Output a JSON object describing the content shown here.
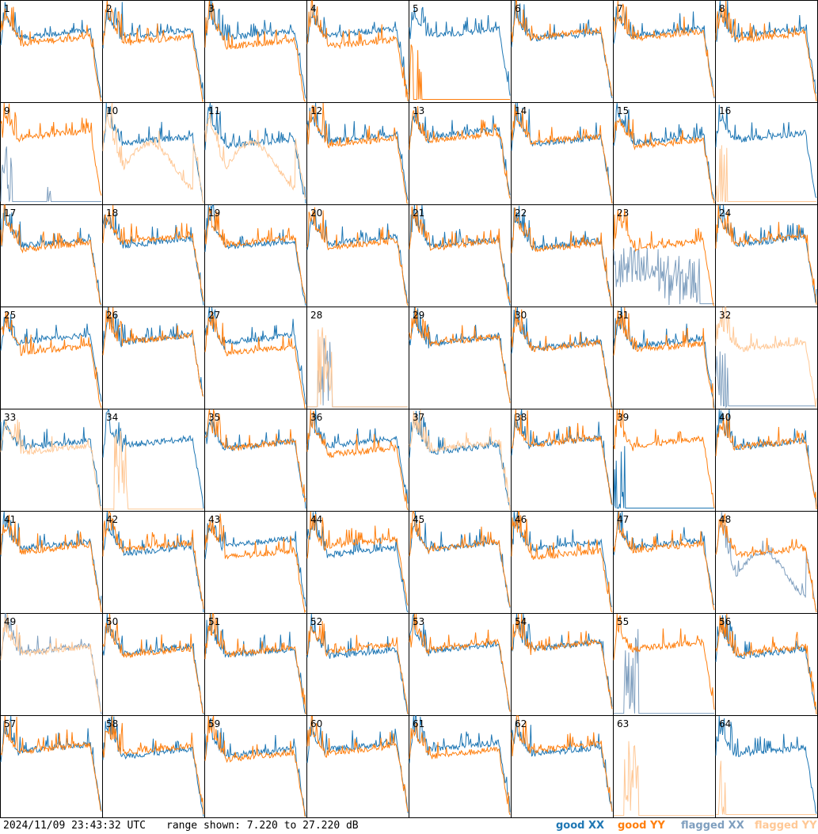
{
  "chart_data": {
    "type": "line",
    "tiles": [
      "1",
      "2",
      "3",
      "4",
      "5",
      "6",
      "7",
      "8",
      "9",
      "10",
      "11",
      "12",
      "13",
      "14",
      "15",
      "16",
      "17",
      "18",
      "19",
      "20",
      "21",
      "22",
      "23",
      "24",
      "25",
      "26",
      "27",
      "28",
      "29",
      "30",
      "31",
      "32",
      "33",
      "34",
      "35",
      "36",
      "37",
      "38",
      "39",
      "40",
      "41",
      "42",
      "43",
      "44",
      "45",
      "46",
      "47",
      "48",
      "49",
      "50",
      "51",
      "52",
      "53",
      "54",
      "55",
      "56",
      "57",
      "58",
      "59",
      "60",
      "61",
      "62",
      "63",
      "64"
    ],
    "ylim": [
      7.22,
      27.22
    ],
    "series": [
      {
        "name": "good XX",
        "color": "#1f77b4"
      },
      {
        "name": "good YY",
        "color": "#ff7f0e"
      },
      {
        "name": "flagged XX",
        "color": "#7f9fbf"
      },
      {
        "name": "flagged YY",
        "color": "#ffc896"
      }
    ],
    "tile_styles": {
      "5": {
        "xx": "good",
        "yy": "spikes_low"
      },
      "9": {
        "xx": "flagged_low",
        "yy": "good"
      },
      "10": {
        "xx": "good",
        "yy": "flagged_dip"
      },
      "11": {
        "xx": "good",
        "yy": "flagged_dip"
      },
      "16": {
        "xx": "good",
        "yy": "flagged_spike"
      },
      "23": {
        "xx": "flagged_noise",
        "yy": "good"
      },
      "28": {
        "xx": "dead",
        "yy": "dead"
      },
      "32": {
        "xx": "flagged_spike",
        "yy": "flagged"
      },
      "33": {
        "xx": "good",
        "yy": "flagged"
      },
      "34": {
        "xx": "good",
        "yy": "dead"
      },
      "37": {
        "xx": "good",
        "yy": "flagged"
      },
      "39": {
        "xx": "spikes_low",
        "yy": "good"
      },
      "48": {
        "xx": "flagged_dip",
        "yy": "good"
      },
      "49": {
        "xx": "flagged",
        "yy": "flagged"
      },
      "55": {
        "xx": "dead",
        "yy": "good"
      },
      "63": {
        "xx": "empty",
        "yy": "dead"
      },
      "64": {
        "xx": "good",
        "yy": "flagged_spike"
      }
    }
  },
  "footer": {
    "timestamp": "2024/11/09 23:43:32 UTC",
    "range": "range shown: 7.220 to 27.220 dB"
  },
  "legend": {
    "good_xx": "good XX",
    "good_yy": "good YY",
    "flagged_xx": "flagged XX",
    "flagged_yy": "flagged YY"
  },
  "colors": {
    "good_xx": "#1f77b4",
    "good_yy": "#ff7f0e",
    "flagged_xx": "#7f9fbf",
    "flagged_yy": "#ffc896"
  }
}
